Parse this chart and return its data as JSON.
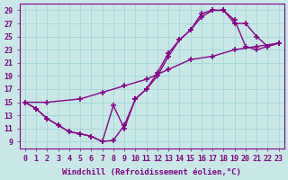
{
  "xlabel": "Windchill (Refroidissement éolien,°C)",
  "xlim": [
    -0.5,
    23.5
  ],
  "ylim": [
    8,
    30
  ],
  "yticks": [
    9,
    11,
    13,
    15,
    17,
    19,
    21,
    23,
    25,
    27,
    29
  ],
  "xticks": [
    0,
    1,
    2,
    3,
    4,
    5,
    6,
    7,
    8,
    9,
    10,
    11,
    12,
    13,
    14,
    15,
    16,
    17,
    18,
    19,
    20,
    21,
    22,
    23
  ],
  "bg_color": "#c8e8e8",
  "grid_color": "#a8d8d8",
  "line_color": "#880088",
  "curves": [
    {
      "x": [
        0,
        1,
        2,
        3,
        4,
        5,
        6,
        7,
        8,
        9,
        10,
        11,
        12,
        13,
        14,
        15,
        16,
        17,
        18,
        19,
        20,
        21,
        22,
        23
      ],
      "y": [
        15,
        14,
        12.5,
        11.5,
        10.5,
        10.2,
        9.8,
        9.0,
        14.5,
        11.0,
        15.5,
        17.0,
        19.0,
        22.0,
        24.5,
        26.0,
        28.0,
        29.0,
        29.0,
        27.0,
        27.0,
        25.0,
        23.5,
        24.0
      ]
    },
    {
      "x": [
        0,
        1,
        2,
        3,
        4,
        5,
        6,
        7,
        8,
        9,
        10,
        11,
        12,
        13,
        14,
        15,
        16,
        17,
        18,
        19,
        20,
        21,
        22,
        23
      ],
      "y": [
        15,
        14,
        12.5,
        11.5,
        10.5,
        10.2,
        9.8,
        9.0,
        9.2,
        11.5,
        15.5,
        17.0,
        19.5,
        22.5,
        24.5,
        26.0,
        28.5,
        29.0,
        29.0,
        27.5,
        23.5,
        23.0,
        23.5,
        24.0
      ]
    },
    {
      "x": [
        0,
        2,
        5,
        7,
        9,
        11,
        13,
        15,
        17,
        19,
        21,
        23
      ],
      "y": [
        15,
        15,
        15.5,
        16.5,
        17.5,
        18.5,
        20.0,
        21.5,
        22.0,
        23.0,
        23.5,
        24.0
      ]
    }
  ],
  "font_color": "#800080",
  "font_size_xlabel": 6.5,
  "font_size_ticks": 6.0,
  "line_width": 1.0,
  "marker": "+",
  "marker_size": 4.0,
  "marker_lw": 1.2
}
